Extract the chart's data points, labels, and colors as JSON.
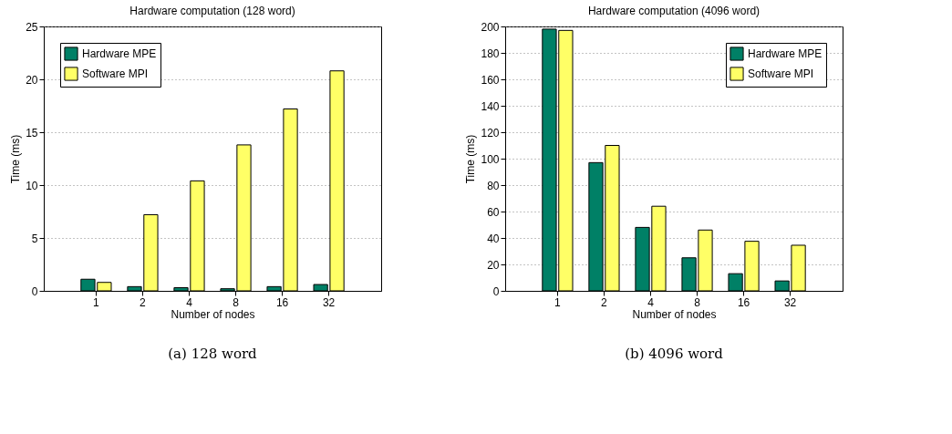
{
  "chart_data": [
    {
      "type": "bar",
      "title": "Hardware computation (128 word)",
      "xlabel": "Number of nodes",
      "ylabel": "Time (ms)",
      "categories": [
        "1",
        "2",
        "4",
        "8",
        "16",
        "32"
      ],
      "series": [
        {
          "name": "Hardware MPE",
          "color": "#008066",
          "values": [
            1.1,
            0.4,
            0.3,
            0.2,
            0.4,
            0.6
          ]
        },
        {
          "name": "Software MPI",
          "color": "#ffff66",
          "values": [
            0.8,
            7.2,
            10.4,
            13.8,
            17.2,
            20.8
          ]
        }
      ],
      "ylim": [
        0,
        25
      ],
      "yticks": [
        0,
        5,
        10,
        15,
        20,
        25
      ],
      "grid": "y",
      "legend": "top left",
      "annotations": [
        "(a)  128 word"
      ]
    },
    {
      "type": "bar",
      "title": "Hardware computation (4096 word)",
      "xlabel": "Number of nodes",
      "ylabel": "Time (ms)",
      "categories": [
        "1",
        "2",
        "4",
        "8",
        "16",
        "32"
      ],
      "series": [
        {
          "name": "Hardware MPE",
          "color": "#008066",
          "values": [
            198,
            97,
            48,
            25,
            13,
            7.5
          ]
        },
        {
          "name": "Software MPI",
          "color": "#ffff66",
          "values": [
            197,
            110,
            64,
            46,
            37.5,
            34.5
          ]
        }
      ],
      "ylim": [
        0,
        200
      ],
      "yticks": [
        0,
        20,
        40,
        60,
        80,
        100,
        120,
        140,
        160,
        180,
        200
      ],
      "grid": "y",
      "legend": "top right",
      "annotations": [
        "(b)  4096 word"
      ]
    }
  ]
}
